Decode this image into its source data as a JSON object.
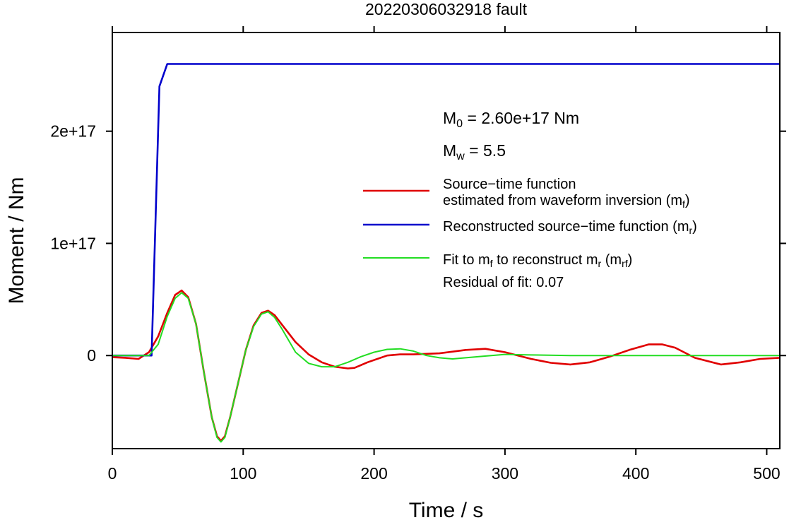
{
  "chart_data": {
    "type": "line",
    "title": "20220306032918 fault",
    "xlabel": "Time / s",
    "ylabel": "Moment / Nm",
    "xlim": [
      0,
      510
    ],
    "ylim": [
      -8.3e+16,
      2.88e+17
    ],
    "x_ticks": [
      {
        "value": 0,
        "label": "0"
      },
      {
        "value": 100,
        "label": "100"
      },
      {
        "value": 200,
        "label": "200"
      },
      {
        "value": 300,
        "label": "300"
      },
      {
        "value": 400,
        "label": "400"
      },
      {
        "value": 500,
        "label": "500"
      }
    ],
    "y_ticks": [
      {
        "value": 0,
        "label": "0"
      },
      {
        "value": 1e+17,
        "label": "1e+17"
      },
      {
        "value": 2e+17,
        "label": "2e+17"
      }
    ],
    "grid": false,
    "legend_position": "right",
    "annotations": {
      "m0_prefix": "M",
      "m0_sub": "0",
      "m0_rest": " = 2.60e+17 Nm",
      "mw_prefix": "M",
      "mw_sub": "w",
      "mw_rest": " = 5.5",
      "residual": "Residual of fit: 0.07"
    },
    "series": [
      {
        "color": "#e00000",
        "legend_lines": [
          {
            "parts": [
              {
                "t": "Source−time function"
              }
            ]
          },
          {
            "parts": [
              {
                "t": "estimated from waveform inversion (m"
              },
              {
                "t": "f",
                "sub": true
              },
              {
                "t": ")"
              }
            ]
          }
        ],
        "x": [
          0,
          10,
          20,
          28,
          35,
          42,
          48,
          53,
          58,
          64,
          70,
          76,
          80,
          83,
          86,
          90,
          96,
          102,
          108,
          114,
          119,
          124,
          130,
          140,
          150,
          160,
          170,
          180,
          185,
          195,
          210,
          220,
          230,
          250,
          270,
          285,
          300,
          320,
          335,
          350,
          365,
          380,
          395,
          410,
          420,
          430,
          445,
          465,
          480,
          495,
          510
        ],
        "y": [
          -1500000000000000.0,
          -2000000000000000.0,
          -3000000000000000.0,
          3000000000000000.0,
          1.7e+16,
          3.8e+16,
          5.4e+16,
          5.8e+16,
          5.2e+16,
          2.8e+16,
          -1.5e+16,
          -5.5e+16,
          -7.2e+16,
          -7.6e+16,
          -7.2e+16,
          -5.5e+16,
          -2.5e+16,
          5000000000000000.0,
          2.7e+16,
          3.8e+16,
          4e+16,
          3.6e+16,
          2.7e+16,
          1.2e+16,
          1000000000000000.0,
          -6000000000000000.0,
          -1e+16,
          -1.15e+16,
          -1.1e+16,
          -6000000000000000.0,
          0,
          1000000000000000.0,
          1000000000000000.0,
          2000000000000000.0,
          5000000000000000.0,
          6000000000000000.0,
          3000000000000000.0,
          -3000000000000000.0,
          -6500000000000000.0,
          -8000000000000000.0,
          -6000000000000000.0,
          -1000000000000000.0,
          5000000000000000.0,
          1e+16,
          1e+16,
          7000000000000000.0,
          -2000000000000000.0,
          -8000000000000000.0,
          -6000000000000000.0,
          -3000000000000000.0,
          -2000000000000000.0
        ]
      },
      {
        "color": "#0000cc",
        "legend_lines": [
          {
            "parts": [
              {
                "t": "Reconstructed source−time function (m"
              },
              {
                "t": "r",
                "sub": true
              },
              {
                "t": ")"
              }
            ]
          }
        ],
        "x": [
          0,
          30,
          36,
          42,
          510
        ],
        "y": [
          0,
          0,
          2.4e+17,
          2.6e+17,
          2.6e+17
        ]
      },
      {
        "color": "#22dd22",
        "legend_lines": [
          {
            "parts": [
              {
                "t": "Fit to m"
              },
              {
                "t": "f",
                "sub": true
              },
              {
                "t": " to reconstruct m"
              },
              {
                "t": "r",
                "sub": true
              },
              {
                "t": " (m"
              },
              {
                "t": "rf",
                "sub": true
              },
              {
                "t": ")"
              }
            ]
          }
        ],
        "x": [
          0,
          20,
          28,
          35,
          42,
          48,
          53,
          58,
          64,
          70,
          76,
          80,
          83,
          86,
          90,
          96,
          102,
          108,
          114,
          119,
          124,
          130,
          140,
          150,
          160,
          170,
          180,
          190,
          200,
          210,
          220,
          230,
          240,
          250,
          260,
          270,
          280,
          300,
          320,
          350,
          400,
          450,
          510
        ],
        "y": [
          0,
          0,
          0,
          1e+16,
          3.5e+16,
          5.1e+16,
          5.6e+16,
          5.1e+16,
          2.8e+16,
          -1.5e+16,
          -5.5e+16,
          -7.3e+16,
          -7.7e+16,
          -7.3e+16,
          -5.5e+16,
          -2.5e+16,
          5000000000000000.0,
          2.6e+16,
          3.7e+16,
          3.9e+16,
          3.4e+16,
          2.3e+16,
          3000000000000000.0,
          -7000000000000000.0,
          -1e+16,
          -1e+16,
          -6000000000000000.0,
          -1000000000000000.0,
          3000000000000000.0,
          5500000000000000.0,
          6000000000000000.0,
          4000000000000000.0,
          0,
          -2000000000000000.0,
          -3000000000000000.0,
          -2000000000000000.0,
          -1000000000000000.0,
          1000000000000000.0,
          500000000000000.0,
          0,
          0,
          0,
          0
        ]
      }
    ]
  }
}
